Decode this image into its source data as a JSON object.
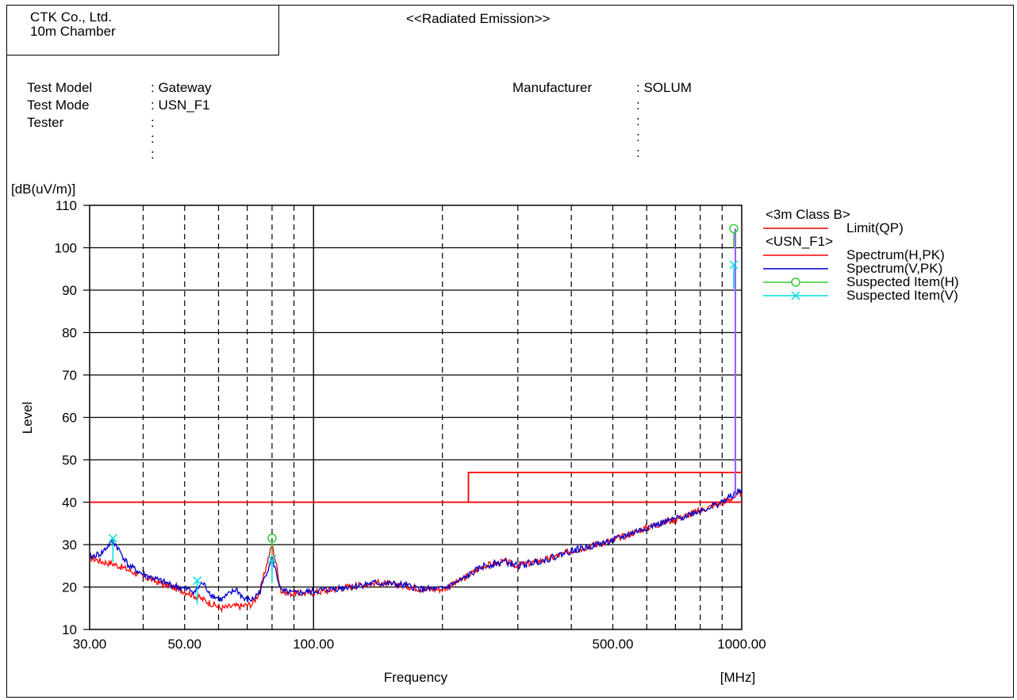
{
  "header": {
    "company": "CTK Co., Ltd.",
    "chamber": "10m Chamber",
    "title": "<<Radiated Emission>>"
  },
  "info": {
    "test_model_label": "Test Model",
    "test_model_value": ": Gateway",
    "test_mode_label": "Test Mode",
    "test_mode_value": ": USN_F1",
    "tester_label": "Tester",
    "manufacturer_label": "Manufacturer",
    "manufacturer_value": ": SOLUM"
  },
  "colors": {
    "limit": "#ff0000",
    "spectrum_h": "#ff0000",
    "spectrum_v": "#0000cc",
    "suspect_h": "#33cc33",
    "suspect_v": "#00dddd",
    "peak_line": "#9966ff"
  },
  "chart_data": {
    "type": "line",
    "ylabel": "Level",
    "yunit": "[dB(uV/m)]",
    "xlabel": "Frequency",
    "xunit": "[MHz]",
    "x_scale": "log",
    "xlim": [
      30,
      1000
    ],
    "ylim": [
      10,
      110
    ],
    "yticks": [
      10,
      20,
      30,
      40,
      50,
      60,
      70,
      80,
      90,
      100,
      110
    ],
    "xtick_labels": [
      {
        "value": 30,
        "label": "30.00"
      },
      {
        "value": 50,
        "label": "50.00"
      },
      {
        "value": 100,
        "label": "100.00"
      },
      {
        "value": 500,
        "label": "500.00"
      },
      {
        "value": 1000,
        "label": "1000.00"
      }
    ],
    "minor_grid_x": [
      40,
      50,
      60,
      70,
      80,
      90,
      200,
      300,
      400,
      500,
      600,
      700,
      800,
      900
    ],
    "major_grid_x": [
      100
    ],
    "grid": true,
    "legend": {
      "placement": "right",
      "groups": [
        {
          "title": "<3m Class B>",
          "items": [
            {
              "name": "Limit(QP)",
              "color_key": "limit",
              "marker": "none"
            }
          ]
        },
        {
          "title": "<USN_F1>",
          "items": [
            {
              "name": "Spectrum(H,PK)",
              "color_key": "spectrum_h",
              "marker": "none"
            },
            {
              "name": "Spectrum(V,PK)",
              "color_key": "spectrum_v",
              "marker": "none"
            },
            {
              "name": "Suspected Item(H)",
              "color_key": "suspect_h",
              "marker": "circle"
            },
            {
              "name": "Suspected Item(V)",
              "color_key": "suspect_v",
              "marker": "x"
            }
          ]
        }
      ]
    },
    "limit": {
      "name": "Limit(QP)",
      "segments": [
        [
          30,
          230,
          40
        ],
        [
          230,
          1000,
          47
        ]
      ]
    },
    "spectrum_h": {
      "name": "Spectrum(H,PK)",
      "points": [
        [
          30,
          27
        ],
        [
          32,
          26
        ],
        [
          34,
          25.5
        ],
        [
          36,
          24.5
        ],
        [
          40,
          22.5
        ],
        [
          45,
          20.5
        ],
        [
          50,
          19
        ],
        [
          54,
          17.5
        ],
        [
          58,
          16
        ],
        [
          61,
          15
        ],
        [
          65,
          15.5
        ],
        [
          68,
          15.5
        ],
        [
          72,
          16
        ],
        [
          75,
          19
        ],
        [
          78,
          26
        ],
        [
          80,
          30
        ],
        [
          82,
          25
        ],
        [
          84,
          19
        ],
        [
          88,
          18.5
        ],
        [
          95,
          18.5
        ],
        [
          105,
          19
        ],
        [
          120,
          20
        ],
        [
          140,
          21
        ],
        [
          160,
          20.5
        ],
        [
          180,
          19.5
        ],
        [
          200,
          19.5
        ],
        [
          220,
          21.5
        ],
        [
          250,
          25
        ],
        [
          280,
          26
        ],
        [
          300,
          25
        ],
        [
          350,
          26.5
        ],
        [
          400,
          28.5
        ],
        [
          500,
          31
        ],
        [
          600,
          34
        ],
        [
          700,
          36
        ],
        [
          800,
          38
        ],
        [
          900,
          40
        ],
        [
          1000,
          42
        ]
      ]
    },
    "spectrum_v": {
      "name": "Spectrum(V,PK)",
      "points": [
        [
          30,
          27
        ],
        [
          32,
          28
        ],
        [
          34,
          31
        ],
        [
          35,
          29
        ],
        [
          37,
          25
        ],
        [
          40,
          23
        ],
        [
          45,
          21
        ],
        [
          50,
          19.5
        ],
        [
          53,
          19
        ],
        [
          55,
          21
        ],
        [
          58,
          18
        ],
        [
          61,
          17
        ],
        [
          63,
          18
        ],
        [
          66,
          19.5
        ],
        [
          69,
          17
        ],
        [
          72,
          17
        ],
        [
          75,
          19
        ],
        [
          78,
          24
        ],
        [
          80,
          27
        ],
        [
          82,
          23
        ],
        [
          84,
          19
        ],
        [
          90,
          18.5
        ],
        [
          100,
          19
        ],
        [
          120,
          20
        ],
        [
          140,
          21
        ],
        [
          160,
          20.5
        ],
        [
          180,
          19.5
        ],
        [
          200,
          19.5
        ],
        [
          220,
          21.5
        ],
        [
          250,
          25
        ],
        [
          280,
          26
        ],
        [
          300,
          25
        ],
        [
          350,
          26.5
        ],
        [
          400,
          28.5
        ],
        [
          500,
          31
        ],
        [
          600,
          34
        ],
        [
          700,
          36
        ],
        [
          800,
          38
        ],
        [
          900,
          40
        ],
        [
          1000,
          43
        ]
      ]
    },
    "suspected_h": [
      {
        "freq": 80.0,
        "level": 31.5
      },
      {
        "freq": 958.0,
        "level": 104.5
      }
    ],
    "suspected_v": [
      {
        "freq": 34.0,
        "level": 31.5
      },
      {
        "freq": 53.5,
        "level": 21.5
      },
      {
        "freq": 80.0,
        "level": 26.5
      },
      {
        "freq": 958.0,
        "level": 96.0
      }
    ]
  }
}
